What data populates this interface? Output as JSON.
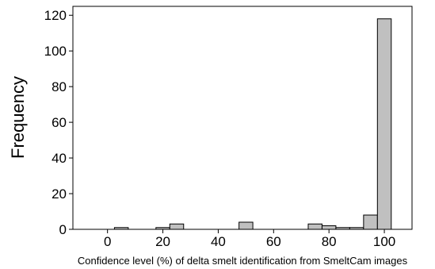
{
  "chart_data": {
    "type": "bar",
    "title": "",
    "xlabel": "Confidence level (%) of delta smelt identification from SmeltCam images",
    "ylabel": "Frequency",
    "xlim": [
      -12.5,
      110
    ],
    "ylim": [
      0,
      125
    ],
    "bin_width": 5,
    "x_ticks": [
      0,
      20,
      40,
      60,
      80,
      100
    ],
    "y_ticks": [
      0,
      20,
      40,
      60,
      80,
      100,
      120
    ],
    "grid": false,
    "bins": [
      {
        "x": 5,
        "value": 1
      },
      {
        "x": 20,
        "value": 1
      },
      {
        "x": 25,
        "value": 3
      },
      {
        "x": 50,
        "value": 4
      },
      {
        "x": 75,
        "value": 3
      },
      {
        "x": 80,
        "value": 2
      },
      {
        "x": 85,
        "value": 1
      },
      {
        "x": 90,
        "value": 1
      },
      {
        "x": 95,
        "value": 8
      },
      {
        "x": 100,
        "value": 118
      }
    ]
  }
}
